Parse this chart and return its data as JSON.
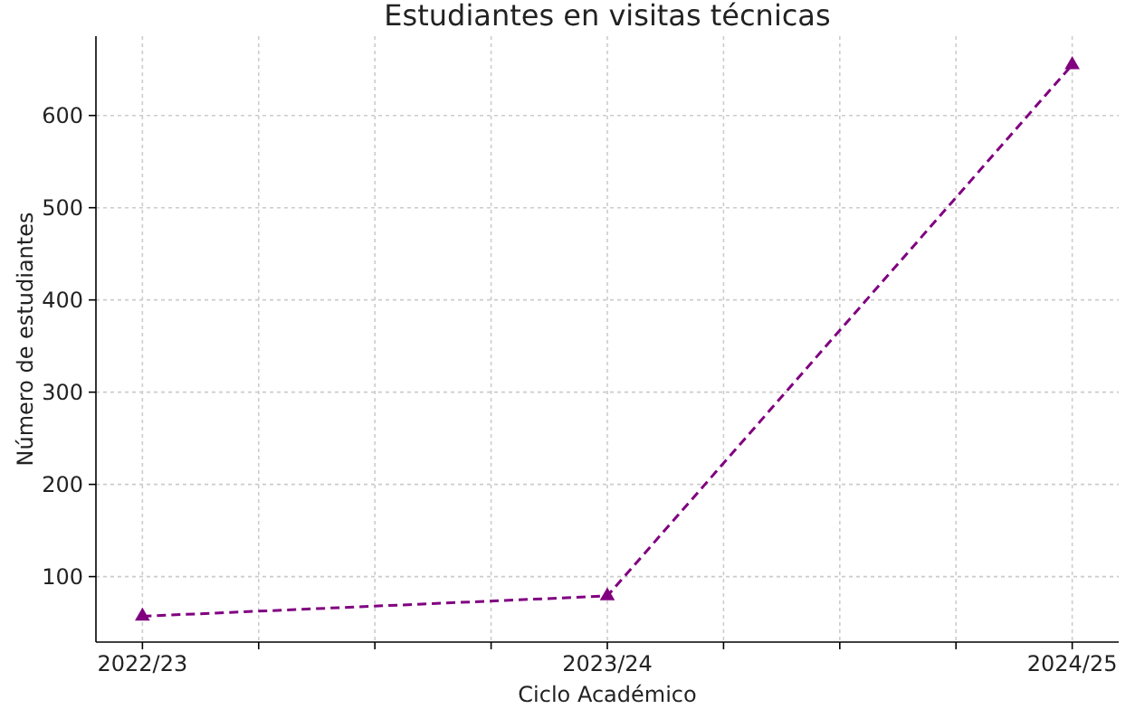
{
  "chart_data": {
    "type": "line",
    "title": "Estudiantes en visitas técnicas",
    "xlabel": "Ciclo Académico",
    "ylabel": "Número de estudiantes",
    "categories": [
      "2022/23",
      null,
      null,
      null,
      "2023/24",
      null,
      null,
      null,
      "2024/25"
    ],
    "ylim": [
      29,
      686
    ],
    "yticks": [
      100,
      200,
      300,
      400,
      500,
      600
    ],
    "series": [
      {
        "color": "#800080",
        "values": [
          57,
          null,
          null,
          null,
          79,
          null,
          null,
          null,
          655
        ]
      }
    ],
    "marker": "triangle",
    "line_style": "dashed",
    "grid": true
  }
}
